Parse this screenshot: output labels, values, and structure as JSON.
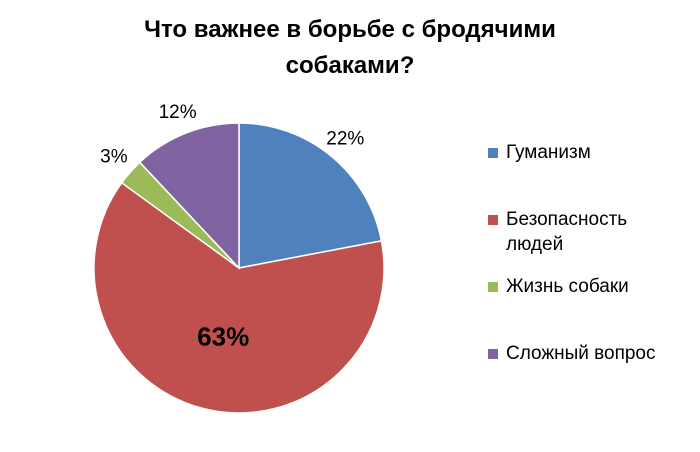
{
  "chart_data": {
    "type": "pie",
    "title": "Что важнее в борьбе с бродячими собаками?",
    "categories": [
      "Гуманизм",
      "Безопасность людей",
      "Жизнь собаки",
      "Сложный вопрос"
    ],
    "values": [
      22,
      63,
      3,
      12
    ],
    "value_labels": [
      "22%",
      "63%",
      "3%",
      "12%"
    ],
    "colors": [
      "#4f81bd",
      "#c0504d",
      "#9bbb59",
      "#8064a2"
    ],
    "legend": "right"
  }
}
